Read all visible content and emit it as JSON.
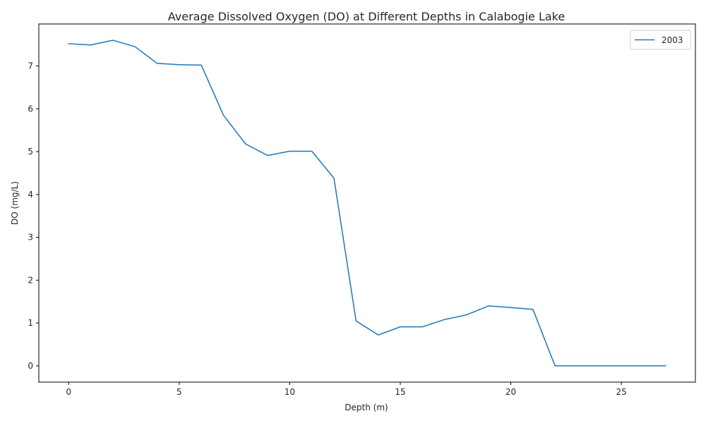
{
  "chart_data": {
    "type": "line",
    "title": "Average Dissolved Oxygen (DO) at Different Depths in Calabogie Lake",
    "xlabel": "Depth (m)",
    "ylabel": "DO (mg/L)",
    "xlim": [
      -1.35,
      28.35
    ],
    "ylim": [
      -0.38,
      7.98
    ],
    "xticks": [
      0,
      5,
      10,
      15,
      20,
      25
    ],
    "xtick_labels": [
      "0",
      "5",
      "10",
      "15",
      "20",
      "25"
    ],
    "yticks": [
      0,
      1,
      2,
      3,
      4,
      5,
      6,
      7
    ],
    "ytick_labels": [
      "0",
      "1",
      "2",
      "3",
      "4",
      "5",
      "6",
      "7"
    ],
    "grid": false,
    "legend_position": "top-right",
    "series": [
      {
        "name": "2003",
        "color": "#1f77b4",
        "x": [
          0,
          1,
          2,
          3,
          4,
          5,
          6,
          7,
          8,
          9,
          10,
          11,
          12,
          13,
          14,
          15,
          16,
          17,
          18,
          19,
          20,
          21,
          22,
          23,
          24,
          25,
          26,
          27
        ],
        "y": [
          7.52,
          7.49,
          7.6,
          7.45,
          7.06,
          7.03,
          7.02,
          5.85,
          5.18,
          4.91,
          5.01,
          5.01,
          4.38,
          1.05,
          0.72,
          0.91,
          0.91,
          1.08,
          1.19,
          1.4,
          1.36,
          1.32,
          0.0,
          0.0,
          0.0,
          0.0,
          0.0,
          0.0
        ]
      }
    ]
  }
}
